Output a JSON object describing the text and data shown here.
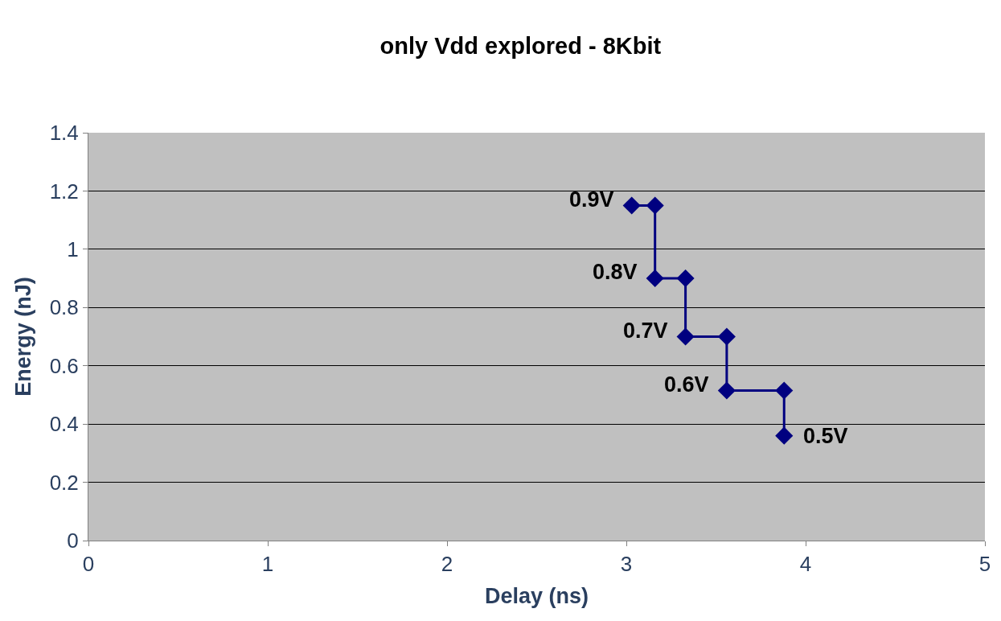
{
  "chart_data": {
    "type": "line",
    "title": "only Vdd explored - 8Kbit",
    "xlabel": "Delay (ns)",
    "ylabel": "Energy (nJ)",
    "x": [
      3.03,
      3.16,
      3.16,
      3.33,
      3.33,
      3.56,
      3.56,
      3.88,
      3.88
    ],
    "series": [
      {
        "color": "#000080",
        "values": [
          1.15,
          1.15,
          0.9,
          0.9,
          0.7,
          0.7,
          0.515,
          0.515,
          0.36
        ]
      }
    ],
    "xlim": [
      0,
      5
    ],
    "xticks": [
      0,
      1,
      2,
      3,
      4,
      5
    ],
    "ylim": [
      0,
      1.4
    ],
    "yticks": [
      0,
      0.2,
      0.4,
      0.6,
      0.8,
      1,
      1.2,
      1.4
    ],
    "grid": "y",
    "legend": false,
    "marker": "diamond",
    "line_style": "solid",
    "annotations": [
      {
        "text": "0.9V",
        "x": 3.03,
        "y": 1.15
      },
      {
        "text": "0.8V",
        "x": 3.16,
        "y": 0.9
      },
      {
        "text": "0.7V",
        "x": 3.33,
        "y": 0.7
      },
      {
        "text": "0.6V",
        "x": 3.56,
        "y": 0.515
      },
      {
        "text": "0.5V",
        "x": 3.88,
        "y": 0.36
      }
    ]
  }
}
